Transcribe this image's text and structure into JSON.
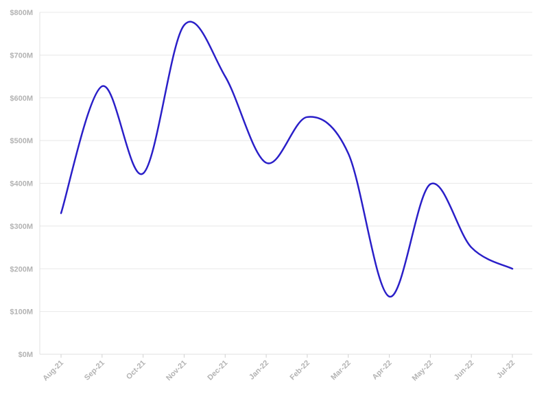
{
  "chart_data": {
    "type": "line",
    "title": "",
    "xlabel": "",
    "ylabel": "",
    "categories": [
      "Aug-21",
      "Sep-21",
      "Oct-21",
      "Nov-21",
      "Dec-21",
      "Jan-22",
      "Feb-22",
      "Mar-22",
      "Apr-22",
      "May-22",
      "Jun-22",
      "Jul-22"
    ],
    "series": [
      {
        "values": [
          330,
          627,
          423,
          770,
          650,
          448,
          555,
          470,
          135,
          398,
          250,
          200
        ],
        "color": "#2a1fc8"
      }
    ],
    "ylim": [
      0,
      800
    ],
    "y_ticks": [
      0,
      100,
      200,
      300,
      400,
      500,
      600,
      700,
      800
    ],
    "y_tick_labels": [
      "$0M",
      "$100M",
      "$200M",
      "$300M",
      "$400M",
      "$500M",
      "$600M",
      "$700M",
      "$800M"
    ],
    "grid": true,
    "legend": "none",
    "curve": "smooth"
  }
}
